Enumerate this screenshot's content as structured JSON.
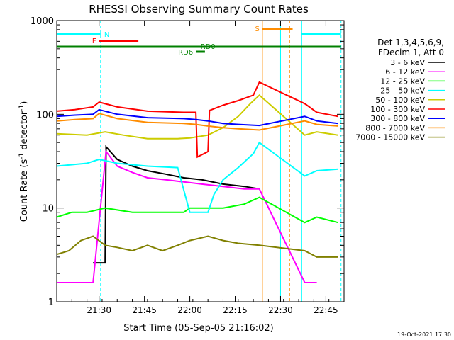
{
  "chart_data": {
    "type": "line",
    "title": "RHESSI Observing Summary Count Rates",
    "xlabel": "Start Time (05-Sep-05 21:16:02)",
    "ylabel": "Count Rate (s",
    "ylabel_sup": "-1",
    "ylabel_tail": " detector",
    "ylabel_tail_sup": "-1",
    "ylabel_close": ")",
    "yscale": "log",
    "ylim": [
      1,
      1000
    ],
    "xlim_minutes": [
      0,
      95
    ],
    "x_ticks": [
      {
        "label": "21:30",
        "t": 14
      },
      {
        "label": "21:45",
        "t": 29
      },
      {
        "label": "22:00",
        "t": 44
      },
      {
        "label": "22:15",
        "t": 59
      },
      {
        "label": "22:30",
        "t": 74
      },
      {
        "label": "22:45",
        "t": 89
      }
    ],
    "y_ticks": [
      {
        "label": "1",
        "v": 1
      },
      {
        "label": "10",
        "v": 10
      },
      {
        "label": "100",
        "v": 100
      },
      {
        "label": "1000",
        "v": 1000
      }
    ],
    "legend_header": [
      "Det 1,3,4,5,6,9,",
      "FDecim 1, Att 0"
    ],
    "series": [
      {
        "name": "3 - 6 keV",
        "color": "#000000",
        "points": [
          [
            12,
            2.6
          ],
          [
            16,
            2.6
          ],
          [
            16.3,
            45
          ],
          [
            20,
            33
          ],
          [
            25,
            28
          ],
          [
            30,
            25
          ],
          [
            36,
            23
          ],
          [
            42,
            21
          ],
          [
            48,
            20
          ],
          [
            55,
            18
          ],
          [
            62,
            17
          ],
          [
            67,
            16
          ]
        ]
      },
      {
        "name": "6 - 12 keV",
        "color": "#ff00ff",
        "points": [
          [
            0,
            1.6
          ],
          [
            12,
            1.6
          ],
          [
            16.3,
            40
          ],
          [
            20,
            28
          ],
          [
            25,
            24
          ],
          [
            30,
            21
          ],
          [
            36,
            20
          ],
          [
            42,
            19
          ],
          [
            48,
            18
          ],
          [
            55,
            17
          ],
          [
            62,
            16
          ],
          [
            67,
            16
          ],
          [
            82,
            1.6
          ],
          [
            86,
            1.6
          ]
        ]
      },
      {
        "name": "12 - 25 keV",
        "color": "#00ff00",
        "points": [
          [
            0,
            8
          ],
          [
            5,
            9
          ],
          [
            10,
            9
          ],
          [
            16,
            10
          ],
          [
            25,
            9
          ],
          [
            35,
            9
          ],
          [
            42,
            9
          ],
          [
            44,
            10
          ],
          [
            55,
            10
          ],
          [
            62,
            11
          ],
          [
            67,
            13
          ],
          [
            82,
            7
          ],
          [
            86,
            8
          ],
          [
            93,
            7
          ]
        ]
      },
      {
        "name": "25 - 50 keV",
        "color": "#00ffff",
        "points": [
          [
            0,
            28
          ],
          [
            10,
            30
          ],
          [
            14,
            33
          ],
          [
            20,
            30
          ],
          [
            30,
            28
          ],
          [
            40,
            27
          ],
          [
            44,
            9
          ],
          [
            50,
            9
          ],
          [
            52,
            14
          ],
          [
            55,
            20
          ],
          [
            60,
            27
          ],
          [
            65,
            38
          ],
          [
            67,
            50
          ],
          [
            82,
            22
          ],
          [
            86,
            25
          ],
          [
            93,
            26
          ]
        ]
      },
      {
        "name": "50 - 100 keV",
        "color": "#cccc00",
        "points": [
          [
            0,
            62
          ],
          [
            10,
            60
          ],
          [
            16,
            65
          ],
          [
            22,
            60
          ],
          [
            30,
            55
          ],
          [
            40,
            55
          ],
          [
            44,
            56
          ],
          [
            50,
            60
          ],
          [
            55,
            72
          ],
          [
            60,
            95
          ],
          [
            64,
            130
          ],
          [
            67,
            160
          ],
          [
            82,
            60
          ],
          [
            86,
            65
          ],
          [
            93,
            60
          ]
        ]
      },
      {
        "name": "100 - 300 keV",
        "color": "#ff0000",
        "points": [
          [
            0,
            108
          ],
          [
            6,
            112
          ],
          [
            12,
            120
          ],
          [
            14,
            135
          ],
          [
            20,
            120
          ],
          [
            30,
            108
          ],
          [
            42,
            105
          ],
          [
            46,
            105
          ],
          [
            46.5,
            35
          ],
          [
            50,
            40
          ],
          [
            50.5,
            110
          ],
          [
            55,
            125
          ],
          [
            60,
            140
          ],
          [
            65,
            160
          ],
          [
            67,
            220
          ],
          [
            82,
            130
          ],
          [
            86,
            105
          ],
          [
            93,
            95
          ]
        ]
      },
      {
        "name": "300 - 800 keV",
        "color": "#0000ff",
        "points": [
          [
            0,
            95
          ],
          [
            6,
            98
          ],
          [
            12,
            100
          ],
          [
            14,
            112
          ],
          [
            20,
            100
          ],
          [
            30,
            92
          ],
          [
            42,
            90
          ],
          [
            46,
            88
          ],
          [
            50,
            85
          ],
          [
            55,
            80
          ],
          [
            60,
            78
          ],
          [
            67,
            76
          ],
          [
            82,
            95
          ],
          [
            86,
            85
          ],
          [
            93,
            80
          ]
        ]
      },
      {
        "name": "800 - 7000 keV",
        "color": "#ff8c00",
        "points": [
          [
            0,
            85
          ],
          [
            6,
            88
          ],
          [
            12,
            90
          ],
          [
            14,
            102
          ],
          [
            20,
            90
          ],
          [
            30,
            82
          ],
          [
            42,
            80
          ],
          [
            46,
            78
          ],
          [
            50,
            75
          ],
          [
            55,
            72
          ],
          [
            60,
            70
          ],
          [
            67,
            68
          ],
          [
            82,
            85
          ],
          [
            86,
            78
          ],
          [
            93,
            75
          ]
        ]
      },
      {
        "name": "7000 - 15000 keV",
        "color": "#808000",
        "points": [
          [
            0,
            3.2
          ],
          [
            4,
            3.5
          ],
          [
            8,
            4.5
          ],
          [
            12,
            5
          ],
          [
            16,
            4
          ],
          [
            20,
            3.8
          ],
          [
            25,
            3.5
          ],
          [
            30,
            4
          ],
          [
            35,
            3.5
          ],
          [
            40,
            4
          ],
          [
            44,
            4.5
          ],
          [
            50,
            5
          ],
          [
            55,
            4.5
          ],
          [
            60,
            4.2
          ],
          [
            67,
            4
          ],
          [
            82,
            3.5
          ],
          [
            86,
            3
          ],
          [
            93,
            3
          ]
        ]
      }
    ],
    "flag_bars": [
      {
        "label": "N",
        "color": "#00ffff",
        "t0": 0,
        "t1": 94
      },
      {
        "label": "F",
        "color": "#ff0000",
        "t0": 14,
        "t1": 27
      },
      {
        "label": "S",
        "color": "#ff8c00",
        "t0": 68,
        "t1": 78
      },
      {
        "label": "RD0",
        "color": "#008000",
        "t0": 0,
        "t1": 94
      },
      {
        "label": "RD6",
        "color": "#008000",
        "t0": 46,
        "t1": 49
      }
    ],
    "vertical_markers": [
      {
        "color": "#00ffff",
        "t": 0,
        "dashed": false
      },
      {
        "color": "#00ffff",
        "t": 14.5,
        "dashed": true
      },
      {
        "color": "#ff8c00",
        "t": 68,
        "dashed": false
      },
      {
        "color": "#00ffff",
        "t": 74,
        "dashed": false
      },
      {
        "color": "#ff8c00",
        "t": 77,
        "dashed": true
      },
      {
        "color": "#00ffff",
        "t": 81,
        "dashed": false
      },
      {
        "color": "#00ffff",
        "t": 94,
        "dashed": true
      }
    ]
  },
  "footer": {
    "timestamp": "19-Oct-2021 17:30"
  }
}
